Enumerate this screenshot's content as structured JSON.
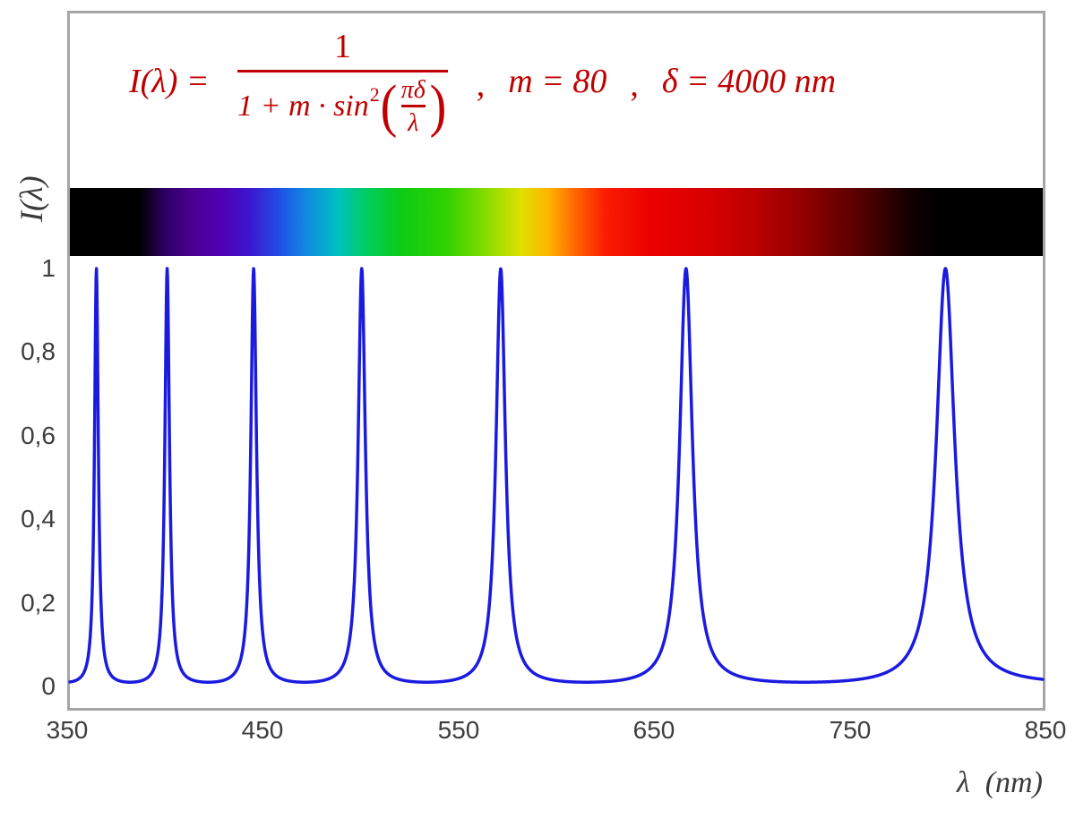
{
  "formula": {
    "color": "#c00000",
    "lhs": "I(λ) = ",
    "numerator": "1",
    "den_text": "1 + m · sin",
    "den_sup": "2",
    "paren_open": "(",
    "inner_numerator": "πδ",
    "inner_denominator": "λ",
    "sep1": ",",
    "param_m": "m = 80",
    "sep2": ",",
    "param_delta": "δ = 4000 nm"
  },
  "axes": {
    "y_label": "I(λ)",
    "x_label": "λ  (nm)",
    "y_ticks": [
      "1",
      "0,8",
      "0,6",
      "0,4",
      "0,2",
      "0"
    ],
    "x_ticks": [
      "350",
      "450",
      "550",
      "650",
      "750",
      "850"
    ]
  },
  "chart_data": {
    "type": "line",
    "title": "I(λ) = 1 / (1 + m·sin²(πδ/λ)),  m = 80,  δ = 4000 nm",
    "xlabel": "λ (nm)",
    "ylabel": "I(λ)",
    "xlim": [
      350,
      850
    ],
    "ylim": [
      0,
      1
    ],
    "x_tick_values": [
      350,
      450,
      550,
      650,
      750,
      850
    ],
    "y_tick_values": [
      0,
      0.2,
      0.4,
      0.6,
      0.8,
      1
    ],
    "grid": false,
    "legend": "none",
    "function": "I(lambda) = 1 / (1 + m * sin(pi*delta/lambda)^2)",
    "parameters": {
      "m": 80,
      "delta_nm": 4000
    },
    "peak_wavelengths_nm": [
      363.6,
      400.0,
      444.4,
      500.0,
      571.4,
      666.7,
      800.0
    ],
    "peak_value": 1,
    "baseline_value": 0.0123,
    "line_color": "#1b1be0",
    "line_width": 3.5,
    "samples": 2600
  },
  "spectrum_bar": {
    "range_nm": [
      350,
      850
    ],
    "stops": [
      {
        "nm": 350,
        "color": "#000000"
      },
      {
        "nm": 386,
        "color": "#000000"
      },
      {
        "nm": 398,
        "color": "#2b0060"
      },
      {
        "nm": 413,
        "color": "#4c0092"
      },
      {
        "nm": 428,
        "color": "#5000b4"
      },
      {
        "nm": 442,
        "color": "#3c14cd"
      },
      {
        "nm": 458,
        "color": "#2050e6"
      },
      {
        "nm": 472,
        "color": "#0f8ce0"
      },
      {
        "nm": 488,
        "color": "#00c2c0"
      },
      {
        "nm": 502,
        "color": "#00cd62"
      },
      {
        "nm": 520,
        "color": "#0ccb14"
      },
      {
        "nm": 545,
        "color": "#34d200"
      },
      {
        "nm": 565,
        "color": "#8edc00"
      },
      {
        "nm": 582,
        "color": "#e0e000"
      },
      {
        "nm": 596,
        "color": "#ffb400"
      },
      {
        "nm": 610,
        "color": "#ff6400"
      },
      {
        "nm": 625,
        "color": "#fa1e00"
      },
      {
        "nm": 648,
        "color": "#ec0000"
      },
      {
        "nm": 680,
        "color": "#d60000"
      },
      {
        "nm": 702,
        "color": "#bc0000"
      },
      {
        "nm": 732,
        "color": "#880000"
      },
      {
        "nm": 760,
        "color": "#4c0000"
      },
      {
        "nm": 781,
        "color": "#150000"
      },
      {
        "nm": 795,
        "color": "#000000"
      },
      {
        "nm": 850,
        "color": "#000000"
      }
    ]
  }
}
